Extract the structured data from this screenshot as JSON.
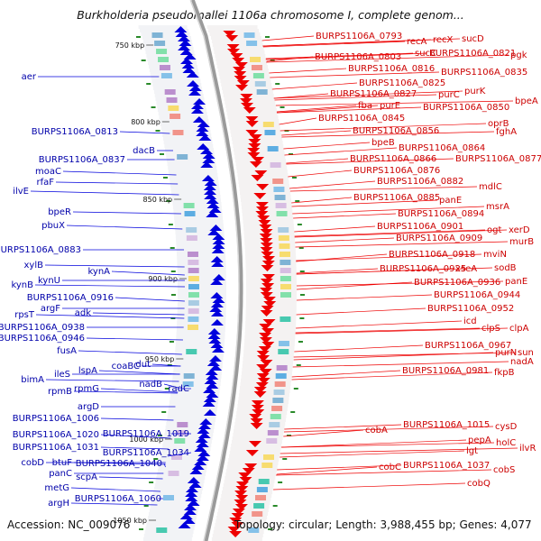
{
  "title": "Burkholderia pseudomallei 1106a chromosome I, complete genom...",
  "footer": {
    "accession": "Accession: NC_009076",
    "summary": "Topology: circular; Length: 3,988,455 bp; Genes: 4,077"
  },
  "colors": {
    "forward_strand": "#ee0000",
    "reverse_strand": "#0000dd",
    "backbone": "#888888",
    "tick": "#2a8a2a",
    "label_forward": "#cc0000",
    "label_reverse": "#0000aa"
  },
  "scale_marks": [
    {
      "label": "750 kbp",
      "position_kbp": 750
    },
    {
      "label": "800 kbp",
      "position_kbp": 800
    },
    {
      "label": "850 kbp",
      "position_kbp": 850
    },
    {
      "label": "900 kbp",
      "position_kbp": 900
    },
    {
      "label": "950 kbp",
      "position_kbp": 950
    },
    {
      "label": "1000 kbp",
      "position_kbp": 1000
    },
    {
      "label": "1050 kbp",
      "position_kbp": 1050
    }
  ],
  "reverse_strand_labels": [
    "aer",
    "BURPS1106A_0813",
    "moaC",
    "BURPS1106A_0837",
    "rfaF",
    "ilvE",
    "dacB",
    "bpeR",
    "pbuX",
    "BURPS1106A_0883",
    "xylB",
    "kynA",
    "kynU",
    "kynB",
    "BURPS1106A_0916",
    "argF",
    "adk",
    "rpsT",
    "BURPS1106A_0938",
    "BURPS1106A_0946",
    "fusA",
    "coaBC",
    "dut",
    "lspA",
    "ileS",
    "bimA",
    "nadB",
    "radC",
    "rpmB",
    "rpmG",
    "argD",
    "BURPS1106A_1006",
    "BURPS1106A_1020",
    "BURPS1106A_1019",
    "BURPS1106A_1031",
    "BURPS1106A_1034",
    "cobD",
    "btuF",
    "BURPS1106A_1040",
    "panC",
    "scpA",
    "metG",
    "BURPS1106A_1060",
    "argH"
  ],
  "forward_strand_labels": [
    "BURPS1106A_0793",
    "recA",
    "recX",
    "sucD",
    "BURPS1106A_0803",
    "sucC",
    "BURPS1106A_0821",
    "pgk",
    "BURPS1106A_0816",
    "BURPS1106A_0835",
    "BURPS1106A_0825",
    "purK",
    "BURPS1106A_0827",
    "purC",
    "fba",
    "purE",
    "bpeA",
    "BURPS1106A_0850",
    "BURPS1106A_0845",
    "oprB",
    "BURPS1106A_0856",
    "fghA",
    "bpeB",
    "BURPS1106A_0864",
    "BURPS1106A_0866",
    "BURPS1106A_0877",
    "BURPS1106A_0876",
    "BURPS1106A_0882",
    "mdlC",
    "BURPS1106A_0885",
    "panE",
    "msrA",
    "BURPS1106A_0894",
    "BURPS1106A_0901",
    "ogt",
    "xerD",
    "BURPS1106A_0909",
    "murB",
    "mviN",
    "BURPS1106A_0918",
    "BURPS1106A_0925",
    "xseA",
    "sodB",
    "BURPS1106A_0936",
    "panE",
    "BURPS1106A_0944",
    "BURPS1106A_0952",
    "icd",
    "clpS",
    "clpA",
    "BURPS1106A_0967",
    "purN",
    "sun",
    "nadA",
    "BURPS1106A_0981",
    "fkpB",
    "BURPS1106A_1015",
    "cysD",
    "cobA",
    "pepA",
    "holC",
    "ilvR",
    "lgt",
    "cobC",
    "BURPS1106A_1037",
    "cobS",
    "cobQ"
  ]
}
